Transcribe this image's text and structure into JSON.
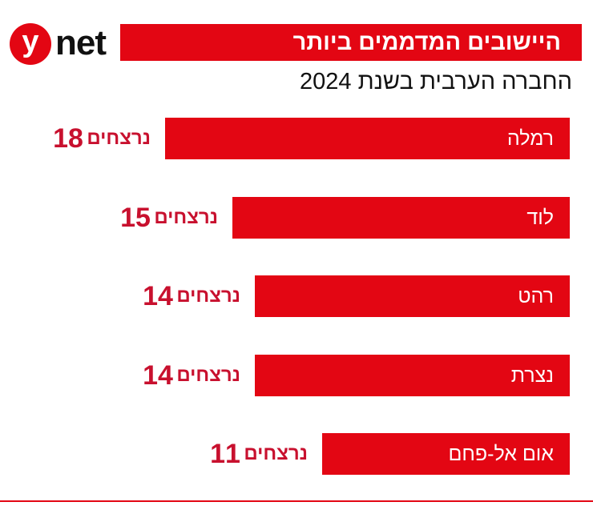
{
  "header": {
    "logo_letter": "y",
    "logo_word": "net",
    "title": "היישובים המדממים ביותר",
    "subtitle": "החברה הערבית בשנת 2024"
  },
  "colors": {
    "bar": "#e30613",
    "value_text": "#c8102e",
    "bar_label_text": "#ffffff"
  },
  "chart_data": {
    "type": "bar",
    "orientation": "horizontal",
    "title": "היישובים המדממים ביותר",
    "subtitle": "החברה הערבית בשנת 2024",
    "categories": [
      "רמלה",
      "לוד",
      "רהט",
      "נצרת",
      "אום אל-פחם"
    ],
    "values": [
      18,
      15,
      14,
      14,
      11
    ],
    "value_unit": "נרצחים",
    "xlim": [
      0,
      20
    ],
    "grid": false,
    "legend": "none"
  }
}
